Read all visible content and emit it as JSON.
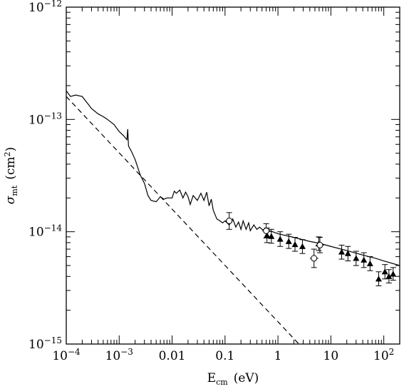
{
  "chart_data": {
    "type": "line",
    "xscale": "log",
    "yscale": "log",
    "xlim": [
      0.0001,
      200
    ],
    "ylim": [
      1e-15,
      1e-12
    ],
    "xlabel_main": "E",
    "xlabel_sub": "cm",
    "xlabel_unit": "(eV)",
    "ylabel_main": "σ",
    "ylabel_sub": "mt",
    "ylabel_unit": "(cm",
    "ylabel_unit_sup": "2",
    "ylabel_unit_close": ")",
    "x_ticks": [
      {
        "value": 0.0001,
        "mantissa": "10",
        "exp": "−4"
      },
      {
        "value": 0.001,
        "mantissa": "10",
        "exp": "−3"
      },
      {
        "value": 0.01,
        "label": "0.01"
      },
      {
        "value": 0.1,
        "label": "0.1"
      },
      {
        "value": 1,
        "label": "1"
      },
      {
        "value": 10,
        "label": "10"
      },
      {
        "value": 100,
        "mantissa": "10",
        "exp": "2"
      }
    ],
    "y_ticks": [
      {
        "value": 1e-15,
        "mantissa": "10",
        "exp": "−15"
      },
      {
        "value": 1e-14,
        "mantissa": "10",
        "exp": "−14"
      },
      {
        "value": 1e-13,
        "mantissa": "10",
        "exp": "−13"
      },
      {
        "value": 1e-12,
        "mantissa": "10",
        "exp": "−12"
      }
    ],
    "series": [
      {
        "style": "solid",
        "points": [
          [
            0.0001,
            1.8e-13
          ],
          [
            0.00012,
            1.6e-13
          ],
          [
            0.00015,
            1.65e-13
          ],
          [
            0.0002,
            1.6e-13
          ],
          [
            0.00025,
            1.4e-13
          ],
          [
            0.0003,
            1.25e-13
          ],
          [
            0.0004,
            1.12e-13
          ],
          [
            0.0005,
            1.06e-13
          ],
          [
            0.0006,
            1e-13
          ],
          [
            0.0008,
            9e-14
          ],
          [
            0.001,
            7.8e-14
          ],
          [
            0.0012,
            7.2e-14
          ],
          [
            0.0014,
            6.6e-14
          ],
          [
            0.00145,
            8.2e-14
          ],
          [
            0.0015,
            5.8e-14
          ],
          [
            0.0017,
            5.2e-14
          ],
          [
            0.002,
            4.4e-14
          ],
          [
            0.0025,
            3.2e-14
          ],
          [
            0.003,
            2.7e-14
          ],
          [
            0.0035,
            2.1e-14
          ],
          [
            0.004,
            1.9e-14
          ],
          [
            0.005,
            1.85e-14
          ],
          [
            0.006,
            2.05e-14
          ],
          [
            0.007,
            1.95e-14
          ],
          [
            0.008,
            2e-14
          ],
          [
            0.01,
            2e-14
          ],
          [
            0.011,
            2.3e-14
          ],
          [
            0.012,
            2.2e-14
          ],
          [
            0.014,
            2.35e-14
          ],
          [
            0.016,
            2e-14
          ],
          [
            0.018,
            2.25e-14
          ],
          [
            0.02,
            2.05e-14
          ],
          [
            0.022,
            1.75e-14
          ],
          [
            0.025,
            2.1e-14
          ],
          [
            0.03,
            1.9e-14
          ],
          [
            0.035,
            2.2e-14
          ],
          [
            0.04,
            1.9e-14
          ],
          [
            0.045,
            2.25e-14
          ],
          [
            0.05,
            1.7e-14
          ],
          [
            0.055,
            1.95e-14
          ],
          [
            0.06,
            1.55e-14
          ],
          [
            0.07,
            1.3e-14
          ],
          [
            0.08,
            1.25e-14
          ],
          [
            0.09,
            1.2e-14
          ],
          [
            0.1,
            1.25e-14
          ],
          [
            0.12,
            1.15e-14
          ],
          [
            0.14,
            1.3e-14
          ],
          [
            0.16,
            1.1e-14
          ],
          [
            0.18,
            1.22e-14
          ],
          [
            0.2,
            1.05e-14
          ],
          [
            0.22,
            1.25e-14
          ],
          [
            0.25,
            1.05e-14
          ],
          [
            0.28,
            1.2e-14
          ],
          [
            0.3,
            1.02e-14
          ],
          [
            0.35,
            1.15e-14
          ],
          [
            0.4,
            1.05e-14
          ],
          [
            0.45,
            1.1e-14
          ],
          [
            0.5,
            1.05e-14
          ],
          [
            0.6,
            1.02e-14
          ],
          [
            0.8,
            1e-14
          ],
          [
            1,
            9.6e-15
          ],
          [
            2,
            8.9e-15
          ],
          [
            4,
            8.2e-15
          ],
          [
            6,
            7.9e-15
          ],
          [
            10,
            7.4e-15
          ],
          [
            20,
            6.8e-15
          ],
          [
            40,
            6.2e-15
          ],
          [
            70,
            5.8e-15
          ],
          [
            100,
            5.5e-15
          ],
          [
            200,
            5e-15
          ]
        ]
      },
      {
        "style": "dashed",
        "points": [
          [
            0.0001,
            1.6e-13
          ],
          [
            2.7,
            9.6e-16
          ]
        ]
      }
    ],
    "data_points": [
      {
        "marker": "triangle",
        "x": 0.62,
        "y": 9.3e-15,
        "yerr": [
          8e-15,
          1.08e-14
        ]
      },
      {
        "marker": "triangle",
        "x": 0.75,
        "y": 9.1e-15,
        "yerr": [
          7.9e-15,
          1.05e-14
        ]
      },
      {
        "marker": "triangle",
        "x": 1.1,
        "y": 8.6e-15,
        "yerr": [
          7.4e-15,
          1e-14
        ]
      },
      {
        "marker": "triangle",
        "x": 1.6,
        "y": 8.2e-15,
        "yerr": [
          7.1e-15,
          9.5e-15
        ]
      },
      {
        "marker": "triangle",
        "x": 2.1,
        "y": 7.7e-15,
        "yerr": [
          6.7e-15,
          8.9e-15
        ]
      },
      {
        "marker": "triangle",
        "x": 2.9,
        "y": 7.4e-15,
        "yerr": [
          6.4e-15,
          8.5e-15
        ]
      },
      {
        "marker": "triangle",
        "x": 5.9,
        "y": 7.8e-15,
        "yerr": [
          6.8e-15,
          9e-15
        ]
      },
      {
        "marker": "triangle",
        "x": 16,
        "y": 6.6e-15,
        "yerr": [
          5.7e-15,
          7.6e-15
        ]
      },
      {
        "marker": "triangle",
        "x": 21,
        "y": 6.4e-15,
        "yerr": [
          5.5e-15,
          7.4e-15
        ]
      },
      {
        "marker": "triangle",
        "x": 30,
        "y": 5.8e-15,
        "yerr": [
          5e-15,
          6.7e-15
        ]
      },
      {
        "marker": "triangle",
        "x": 42,
        "y": 5.6e-15,
        "yerr": [
          4.8e-15,
          6.5e-15
        ]
      },
      {
        "marker": "triangle",
        "x": 55,
        "y": 5.2e-15,
        "yerr": [
          4.5e-15,
          6e-15
        ]
      },
      {
        "marker": "triangle",
        "x": 80,
        "y": 3.8e-15,
        "yerr": [
          3.3e-15,
          4.4e-15
        ]
      },
      {
        "marker": "triangle",
        "x": 105,
        "y": 4.4e-15,
        "yerr": [
          3.8e-15,
          5.1e-15
        ]
      },
      {
        "marker": "triangle",
        "x": 125,
        "y": 4e-15,
        "yerr": [
          3.5e-15,
          4.6e-15
        ]
      },
      {
        "marker": "triangle",
        "x": 150,
        "y": 4.2e-15,
        "yerr": [
          3.7e-15,
          4.8e-15
        ]
      },
      {
        "marker": "circle",
        "x": 0.12,
        "y": 1.25e-14,
        "yerr": [
          1.05e-14,
          1.48e-14
        ],
        "xerr": [
          0.1,
          0.14
        ]
      },
      {
        "marker": "circle",
        "x": 0.6,
        "y": 1.02e-14,
        "yerr": [
          8.8e-15,
          1.18e-14
        ],
        "xerr": [
          0.5,
          0.72
        ]
      },
      {
        "marker": "circle",
        "x": 4.8,
        "y": 5.8e-15,
        "yerr": [
          4.8e-15,
          7e-15
        ],
        "xerr": [
          4.0,
          5.8
        ]
      },
      {
        "marker": "circle",
        "x": 6.2,
        "y": 7.6e-15,
        "yerr": [
          6.5e-15,
          8.9e-15
        ],
        "xerr": [
          5.2,
          7.4
        ]
      }
    ],
    "grid": false,
    "colors": {
      "line": "#000000",
      "background": "#ffffff"
    }
  }
}
